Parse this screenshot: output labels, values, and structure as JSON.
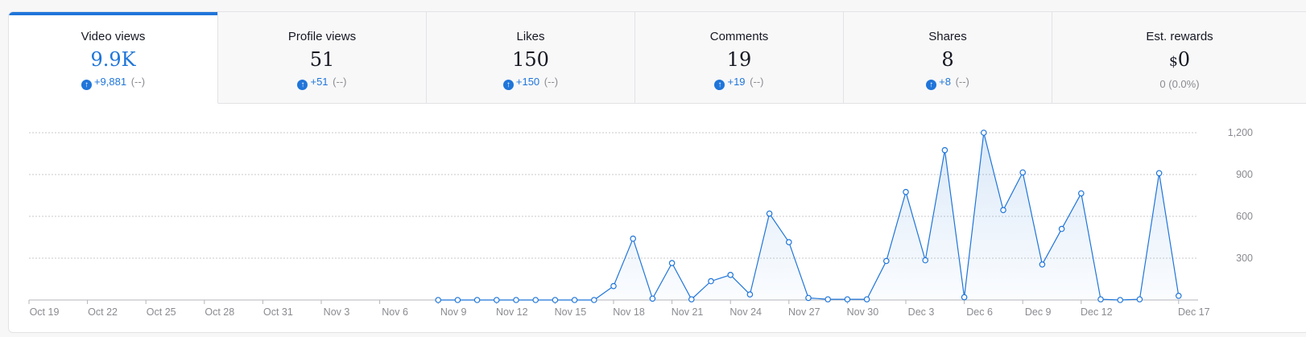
{
  "tabs": [
    {
      "label": "Video views",
      "value": "9.9K",
      "delta": "+9,881",
      "pct": "(--)",
      "active": true
    },
    {
      "label": "Profile views",
      "value": "51",
      "delta": "+51",
      "pct": "(--)"
    },
    {
      "label": "Likes",
      "value": "150",
      "delta": "+150",
      "pct": "(--)"
    },
    {
      "label": "Comments",
      "value": "19",
      "delta": "+19",
      "pct": "(--)"
    },
    {
      "label": "Shares",
      "value": "8",
      "delta": "+8",
      "pct": "(--)"
    },
    {
      "label": "Est. rewards",
      "value_prefix": "$",
      "value": "0",
      "plain_delta": "0 (0.0%)"
    }
  ],
  "colors": {
    "accent": "#1f75d9",
    "text": "#161823",
    "muted": "#8a8b91",
    "grid": "#c9c9cc"
  },
  "icons": {
    "delta": "arrow-up-circle-icon"
  },
  "chart_data": {
    "type": "area",
    "x_ticks": [
      "Oct 19",
      "Oct 22",
      "Oct 25",
      "Oct 28",
      "Oct 31",
      "Nov 3",
      "Nov 6",
      "Nov 9",
      "Nov 12",
      "Nov 15",
      "Nov 18",
      "Nov 21",
      "Nov 24",
      "Nov 27",
      "Nov 30",
      "Dec 3",
      "Dec 6",
      "Dec 9",
      "Dec 12",
      "Dec 17"
    ],
    "y_ticks": [
      "300",
      "600",
      "900",
      "1,200"
    ],
    "ylim": [
      0,
      1200
    ],
    "grid": true,
    "y_axis_side": "right",
    "x_start": "2024-10-19",
    "x_end": "2024-12-18",
    "series": [
      {
        "values": [
          {
            "date": "2024-11-09",
            "y": 0
          },
          {
            "date": "2024-11-10",
            "y": 0
          },
          {
            "date": "2024-11-11",
            "y": 0
          },
          {
            "date": "2024-11-12",
            "y": 0
          },
          {
            "date": "2024-11-13",
            "y": 0
          },
          {
            "date": "2024-11-14",
            "y": 0
          },
          {
            "date": "2024-11-15",
            "y": 0
          },
          {
            "date": "2024-11-16",
            "y": 0
          },
          {
            "date": "2024-11-17",
            "y": 0
          },
          {
            "date": "2024-11-18",
            "y": 100
          },
          {
            "date": "2024-11-19",
            "y": 440
          },
          {
            "date": "2024-11-20",
            "y": 10
          },
          {
            "date": "2024-11-21",
            "y": 265
          },
          {
            "date": "2024-11-22",
            "y": 5
          },
          {
            "date": "2024-11-23",
            "y": 135
          },
          {
            "date": "2024-11-24",
            "y": 180
          },
          {
            "date": "2024-11-25",
            "y": 40
          },
          {
            "date": "2024-11-26",
            "y": 620
          },
          {
            "date": "2024-11-27",
            "y": 415
          },
          {
            "date": "2024-11-28",
            "y": 15
          },
          {
            "date": "2024-11-29",
            "y": 5
          },
          {
            "date": "2024-11-30",
            "y": 5
          },
          {
            "date": "2024-12-01",
            "y": 5
          },
          {
            "date": "2024-12-02",
            "y": 280
          },
          {
            "date": "2024-12-03",
            "y": 775
          },
          {
            "date": "2024-12-04",
            "y": 285
          },
          {
            "date": "2024-12-05",
            "y": 1075
          },
          {
            "date": "2024-12-06",
            "y": 20
          },
          {
            "date": "2024-12-07",
            "y": 1200
          },
          {
            "date": "2024-12-08",
            "y": 645
          },
          {
            "date": "2024-12-09",
            "y": 915
          },
          {
            "date": "2024-12-10",
            "y": 255
          },
          {
            "date": "2024-12-11",
            "y": 510
          },
          {
            "date": "2024-12-12",
            "y": 765
          },
          {
            "date": "2024-12-13",
            "y": 5
          },
          {
            "date": "2024-12-14",
            "y": 0
          },
          {
            "date": "2024-12-15",
            "y": 5
          },
          {
            "date": "2024-12-16",
            "y": 910
          },
          {
            "date": "2024-12-17",
            "y": 30
          }
        ]
      }
    ]
  }
}
